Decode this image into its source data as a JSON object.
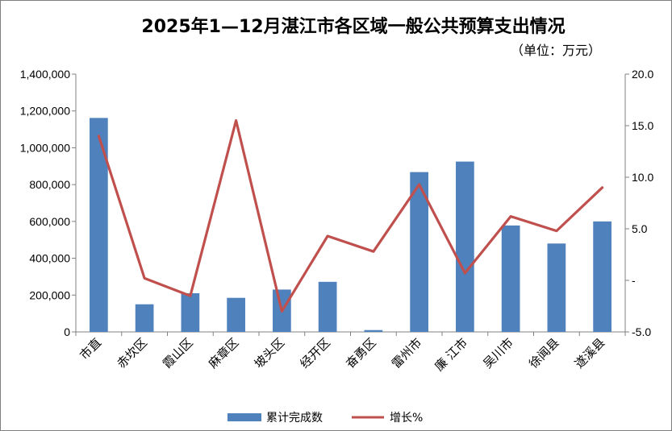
{
  "chart_data": {
    "type": "bar+line",
    "title": "2025年1—12月湛江市各区域一般公共预算支出情况",
    "subtitle": "（单位：万元）",
    "categories": [
      "市直",
      "赤坎区",
      "霞山区",
      "麻章区",
      "坡头区",
      "经开区",
      "奋勇区",
      "雷州市",
      "廉 江市",
      "吴川市",
      "徐闻县",
      "遂溪县"
    ],
    "series": [
      {
        "name": "累计完成数",
        "type": "bar",
        "axis": "left",
        "color": "#4f81bd",
        "values": [
          1162000,
          150000,
          210000,
          185000,
          230000,
          272000,
          10000,
          868000,
          925000,
          578000,
          480000,
          600000
        ]
      },
      {
        "name": "增长%",
        "type": "line",
        "axis": "right",
        "color": "#c0504d",
        "values": [
          14.0,
          0.2,
          -1.5,
          15.5,
          -3.0,
          4.3,
          2.8,
          9.3,
          0.7,
          6.2,
          4.8,
          9.0
        ]
      }
    ],
    "left_axis": {
      "min": 0,
      "max": 1400000,
      "step": 200000,
      "tick_labels": [
        "0",
        "200,000",
        "400,000",
        "600,000",
        "800,000",
        "1,000,000",
        "1,200,000",
        "1,400,000"
      ]
    },
    "right_axis": {
      "min": -5,
      "max": 20,
      "step": 5,
      "tick_labels": [
        "-5.0",
        "-",
        "5.0",
        "10.0",
        "15.0",
        "20.0"
      ]
    },
    "grid": false,
    "legend_position": "bottom"
  }
}
